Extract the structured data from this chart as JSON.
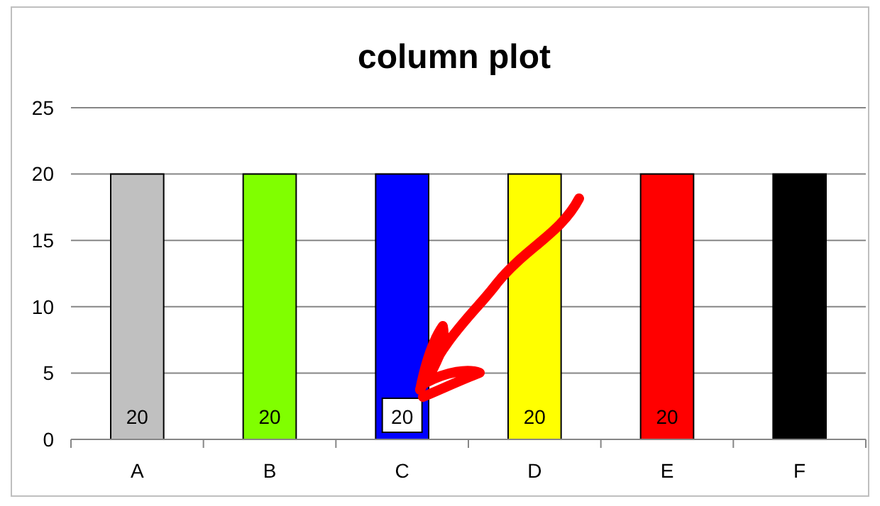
{
  "chart_data": {
    "type": "bar",
    "title": "column plot",
    "categories": [
      "A",
      "B",
      "C",
      "D",
      "E",
      "F"
    ],
    "values": [
      20,
      20,
      20,
      20,
      20,
      20
    ],
    "colors": [
      "#c0c0c0",
      "#80ff00",
      "#0000ff",
      "#ffff00",
      "#ff0000",
      "#000000"
    ],
    "value_labels": [
      "20",
      "20",
      "20",
      "20",
      "20",
      null
    ],
    "ylim": [
      0,
      25
    ],
    "yticks": [
      0,
      5,
      10,
      15,
      20,
      25
    ],
    "grid": "y"
  }
}
